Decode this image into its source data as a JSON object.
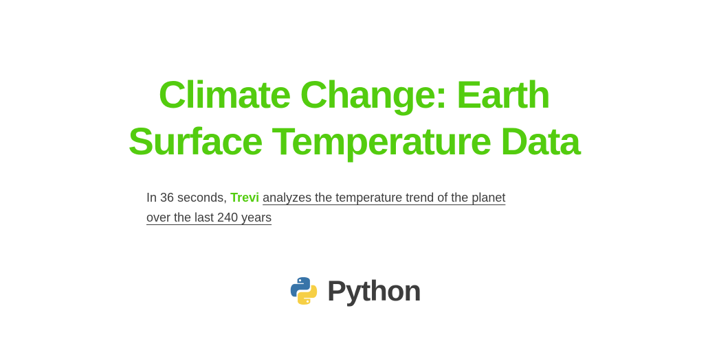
{
  "title": {
    "line1": "Climate Change: Earth",
    "line2": "Surface Temperature Data"
  },
  "subtitle": {
    "prefix": "In 36 seconds, ",
    "brand": "Trevi",
    "space": " ",
    "link_line1": "analyzes the temperature trend of the planet",
    "link_line2": "over the last 240 years"
  },
  "logo": {
    "icon": "python-logo-icon",
    "text": "Python"
  },
  "colors": {
    "title": "#53cc0f",
    "brand": "#53cc0f",
    "text": "#3d3d3d",
    "python_blue": "#3874a8",
    "python_yellow": "#f6cf45"
  }
}
